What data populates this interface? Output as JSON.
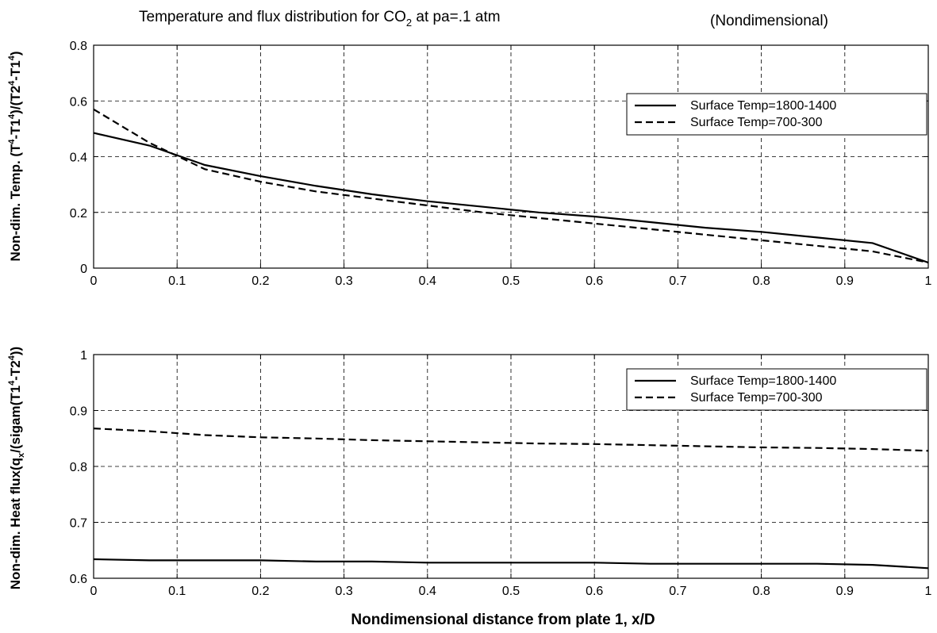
{
  "chart_data": [
    {
      "type": "line",
      "title_main": "Temperature and flux distribution for CO",
      "title_sub": "2",
      "title_tail": " at pa=.1 atm",
      "title_note": "(Nondimensional)",
      "ylabel_parts": [
        {
          "t": "Non-dim. Temp. (T"
        },
        {
          "t": "4",
          "sup": true
        },
        {
          "t": "-T1"
        },
        {
          "t": "4",
          "sup": true
        },
        {
          "t": ")/(T2"
        },
        {
          "t": "4",
          "sup": true
        },
        {
          "t": "-T1"
        },
        {
          "t": "4",
          "sup": true
        },
        {
          "t": ")"
        }
      ],
      "xlabel": "",
      "xlim": [
        0,
        1
      ],
      "ylim": [
        0,
        0.8
      ],
      "xticks": [
        0,
        0.1,
        0.2,
        0.3,
        0.4,
        0.5,
        0.6,
        0.7,
        0.8,
        0.9,
        1
      ],
      "xtick_labels": [
        "0",
        "0.1",
        "0.2",
        "0.3",
        "0.4",
        "0.5",
        "0.6",
        "0.7",
        "0.8",
        "0.9",
        "1"
      ],
      "yticks": [
        0,
        0.2,
        0.4,
        0.6,
        0.8
      ],
      "ytick_labels": [
        "0",
        "0.2",
        "0.4",
        "0.6",
        "0.8"
      ],
      "grid": true,
      "legend_position": "top-right",
      "x": [
        0,
        0.0667,
        0.1333,
        0.2,
        0.2667,
        0.3333,
        0.4,
        0.4667,
        0.5333,
        0.6,
        0.6667,
        0.7333,
        0.8,
        0.8667,
        0.9333,
        1
      ],
      "series": [
        {
          "name": "Surface Temp=1800-1400",
          "style": "solid",
          "values": [
            0.485,
            0.44,
            0.37,
            0.33,
            0.295,
            0.265,
            0.24,
            0.22,
            0.2,
            0.185,
            0.165,
            0.145,
            0.13,
            0.11,
            0.09,
            0.02
          ]
        },
        {
          "name": "Surface Temp=700-300",
          "style": "dashed",
          "values": [
            0.57,
            0.45,
            0.355,
            0.31,
            0.275,
            0.25,
            0.225,
            0.2,
            0.18,
            0.16,
            0.14,
            0.12,
            0.1,
            0.08,
            0.06,
            0.02
          ]
        }
      ]
    },
    {
      "type": "line",
      "ylabel_parts": [
        {
          "t": "Non-dim. Heat flux(q"
        },
        {
          "t": "x",
          "sub": true
        },
        {
          "t": "/(sigam(T1"
        },
        {
          "t": "4",
          "sup": true
        },
        {
          "t": "-T2"
        },
        {
          "t": "4",
          "sup": true
        },
        {
          "t": "))"
        }
      ],
      "xlabel": "Nondimensional distance from plate 1, x/D",
      "xlim": [
        0,
        1
      ],
      "ylim": [
        0.6,
        1
      ],
      "xticks": [
        0,
        0.1,
        0.2,
        0.3,
        0.4,
        0.5,
        0.6,
        0.7,
        0.8,
        0.9,
        1
      ],
      "xtick_labels": [
        "0",
        "0.1",
        "0.2",
        "0.3",
        "0.4",
        "0.5",
        "0.6",
        "0.7",
        "0.8",
        "0.9",
        "1"
      ],
      "yticks": [
        0.6,
        0.7,
        0.8,
        0.9,
        1
      ],
      "ytick_labels": [
        "0.6",
        "0.7",
        "0.8",
        "0.9",
        "1"
      ],
      "grid": true,
      "legend_position": "top-right",
      "x": [
        0,
        0.0667,
        0.1333,
        0.2,
        0.2667,
        0.3333,
        0.4,
        0.4667,
        0.5333,
        0.6,
        0.6667,
        0.7333,
        0.8,
        0.8667,
        0.9333,
        1
      ],
      "series": [
        {
          "name": "Surface Temp=1800-1400",
          "style": "solid",
          "values": [
            0.634,
            0.632,
            0.632,
            0.632,
            0.63,
            0.63,
            0.628,
            0.628,
            0.628,
            0.628,
            0.626,
            0.626,
            0.626,
            0.626,
            0.624,
            0.618
          ]
        },
        {
          "name": "Surface Temp=700-300",
          "style": "dashed",
          "values": [
            0.868,
            0.863,
            0.856,
            0.852,
            0.85,
            0.847,
            0.845,
            0.843,
            0.841,
            0.84,
            0.838,
            0.836,
            0.834,
            0.833,
            0.831,
            0.828
          ]
        }
      ]
    }
  ]
}
